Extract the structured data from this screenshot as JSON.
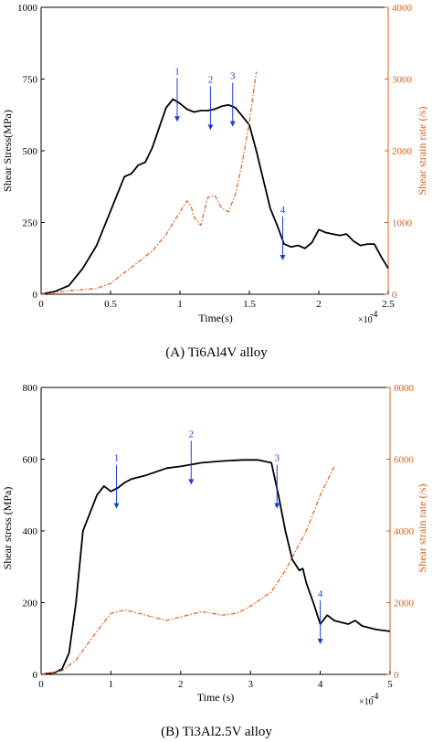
{
  "colors": {
    "stress": "#000000",
    "strain_rate": "#e0601a",
    "annotation": "#1a3fd6",
    "axis_right": "#d2601a"
  },
  "chart_data": [
    {
      "type": "line",
      "caption": "(A) Ti6Al4V alloy",
      "xlabel": "Time(s)",
      "ylabel": "Shear Stress(MPa)",
      "ylabel_right": "Shear strain rate (/s)",
      "x_scale_note": "×10",
      "x_scale_exp": "-4",
      "xlim": [
        0,
        2.5
      ],
      "ylim": [
        0,
        1000
      ],
      "ylim_right": [
        0,
        4000
      ],
      "xticks": [
        "0",
        "0.5",
        "1",
        "1.5",
        "2",
        "2.5"
      ],
      "yticks": [
        "0",
        "250",
        "500",
        "750",
        "1000"
      ],
      "yticks_right": [
        "0",
        "1000",
        "2000",
        "3000",
        "4000"
      ],
      "grid": false,
      "series": [
        {
          "axis": "left",
          "style": "solid",
          "x": [
            0,
            0.1,
            0.2,
            0.3,
            0.4,
            0.5,
            0.55,
            0.6,
            0.65,
            0.7,
            0.75,
            0.8,
            0.85,
            0.9,
            0.95,
            1.0,
            1.05,
            1.1,
            1.15,
            1.2,
            1.25,
            1.3,
            1.35,
            1.4,
            1.45,
            1.5,
            1.55,
            1.6,
            1.65,
            1.7,
            1.75,
            1.8,
            1.85,
            1.9,
            1.95,
            2.0,
            2.05,
            2.1,
            2.15,
            2.2,
            2.25,
            2.3,
            2.35,
            2.4,
            2.45,
            2.5
          ],
          "y": [
            0,
            10,
            30,
            90,
            170,
            290,
            350,
            410,
            420,
            450,
            460,
            510,
            580,
            650,
            680,
            665,
            645,
            635,
            640,
            640,
            645,
            655,
            660,
            650,
            620,
            590,
            500,
            400,
            300,
            240,
            175,
            165,
            170,
            160,
            180,
            225,
            215,
            210,
            205,
            210,
            185,
            170,
            175,
            175,
            130,
            90
          ]
        },
        {
          "axis": "right",
          "style": "dashdot",
          "x": [
            0,
            0.2,
            0.4,
            0.5,
            0.6,
            0.7,
            0.8,
            0.9,
            1.0,
            1.05,
            1.08,
            1.1,
            1.15,
            1.2,
            1.25,
            1.3,
            1.35,
            1.4,
            1.45,
            1.5,
            1.55
          ],
          "y": [
            0,
            50,
            80,
            150,
            300,
            450,
            600,
            830,
            1150,
            1300,
            1230,
            1080,
            960,
            1350,
            1380,
            1200,
            1150,
            1400,
            1850,
            2400,
            3100
          ]
        }
      ],
      "annotations": [
        {
          "label": "1",
          "x": 0.98
        },
        {
          "label": "2",
          "x": 1.22
        },
        {
          "label": "3",
          "x": 1.38
        },
        {
          "label": "4",
          "x": 1.74
        }
      ]
    },
    {
      "type": "line",
      "caption": "(B) Ti3Al2.5V alloy",
      "xlabel": "Time (s)",
      "ylabel": "Shear stress (MPa)",
      "ylabel_right": "Shear strain rate (/s)",
      "x_scale_note": "×10",
      "x_scale_exp": "-4",
      "xlim": [
        0,
        5
      ],
      "ylim": [
        0,
        800
      ],
      "ylim_right": [
        0,
        8000
      ],
      "xticks": [
        "0",
        "1",
        "2",
        "3",
        "4",
        "5"
      ],
      "yticks": [
        "0",
        "200",
        "400",
        "600",
        "800"
      ],
      "yticks_right": [
        "0",
        "2000",
        "4000",
        "6000",
        "8000"
      ],
      "grid": false,
      "series": [
        {
          "axis": "left",
          "style": "solid",
          "x": [
            0,
            0.2,
            0.3,
            0.4,
            0.5,
            0.6,
            0.7,
            0.8,
            0.9,
            1.0,
            1.1,
            1.2,
            1.3,
            1.5,
            1.8,
            2.0,
            2.3,
            2.6,
            2.9,
            3.1,
            3.3,
            3.4,
            3.5,
            3.6,
            3.7,
            3.75,
            3.8,
            3.9,
            4.0,
            4.1,
            4.2,
            4.4,
            4.5,
            4.6,
            4.8,
            5.0
          ],
          "y": [
            0,
            5,
            15,
            60,
            200,
            400,
            450,
            500,
            525,
            510,
            520,
            535,
            545,
            555,
            575,
            580,
            590,
            595,
            598,
            598,
            590,
            500,
            400,
            320,
            290,
            295,
            255,
            200,
            140,
            165,
            150,
            140,
            150,
            135,
            125,
            120
          ]
        },
        {
          "axis": "right",
          "style": "dashdot",
          "x": [
            0,
            0.3,
            0.5,
            0.8,
            1.0,
            1.2,
            1.5,
            1.8,
            2.0,
            2.3,
            2.6,
            2.8,
            3.0,
            3.3,
            3.5,
            3.8,
            4.0,
            4.2
          ],
          "y": [
            0,
            100,
            400,
            1200,
            1700,
            1800,
            1650,
            1500,
            1600,
            1750,
            1650,
            1700,
            1900,
            2300,
            2900,
            4000,
            5000,
            5800
          ]
        }
      ],
      "annotations": [
        {
          "label": "1",
          "x": 1.08
        },
        {
          "label": "2",
          "x": 2.15
        },
        {
          "label": "3",
          "x": 3.38
        },
        {
          "label": "4",
          "x": 4.0
        }
      ]
    }
  ]
}
